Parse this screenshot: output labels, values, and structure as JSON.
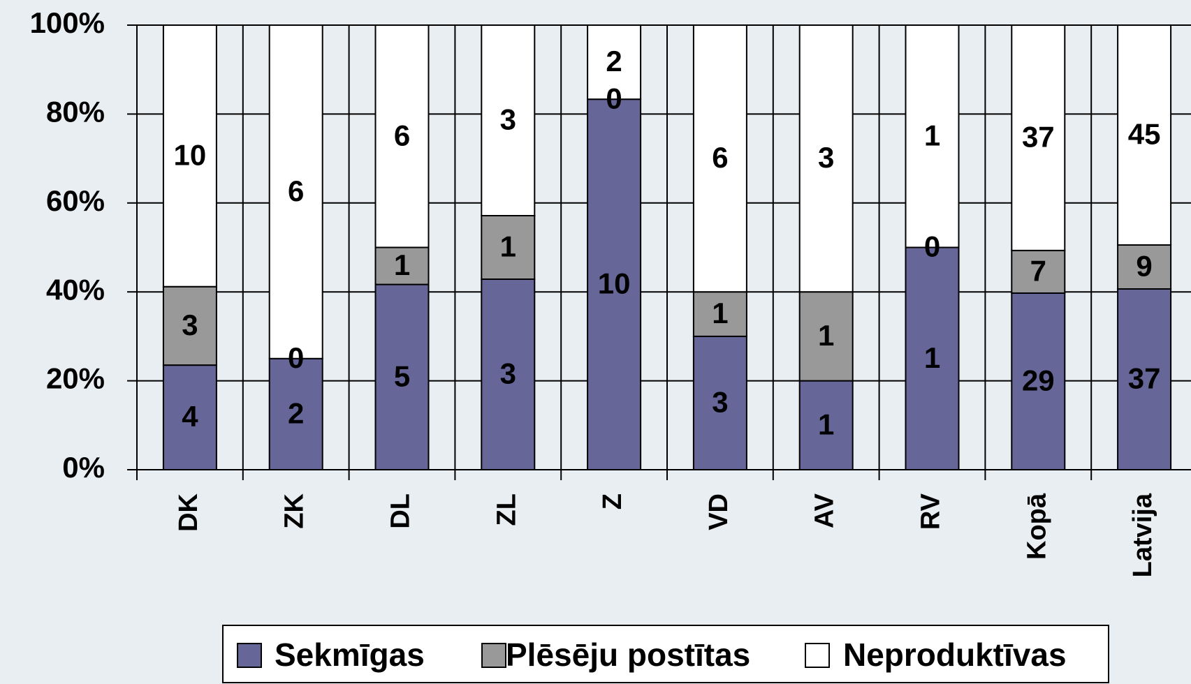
{
  "chart_data": {
    "type": "bar",
    "stacking": "percent",
    "categories": [
      "DK",
      "ZK",
      "DL",
      "ZL",
      "Z",
      "VD",
      "AV",
      "RV",
      "Kopā",
      "Latvija"
    ],
    "series": [
      {
        "name": "Sekmīgas",
        "color": "#666699",
        "values": [
          4,
          2,
          5,
          3,
          10,
          3,
          1,
          1,
          29,
          37
        ]
      },
      {
        "name": "Plēsēju postītas",
        "color": "#999999",
        "values": [
          3,
          0,
          1,
          1,
          0,
          1,
          1,
          0,
          7,
          9
        ]
      },
      {
        "name": "Neproduktīvas",
        "color": "#ffffff",
        "values": [
          10,
          6,
          6,
          3,
          2,
          6,
          3,
          1,
          37,
          45
        ]
      }
    ],
    "ylim": [
      0,
      100
    ],
    "yticks": [
      {
        "value": 0,
        "label": "0%"
      },
      {
        "value": 20,
        "label": "20%"
      },
      {
        "value": 40,
        "label": "40%"
      },
      {
        "value": 60,
        "label": "60%"
      },
      {
        "value": 80,
        "label": "80%"
      },
      {
        "value": 100,
        "label": "100%"
      }
    ],
    "grid": true,
    "legend": "bottom"
  }
}
